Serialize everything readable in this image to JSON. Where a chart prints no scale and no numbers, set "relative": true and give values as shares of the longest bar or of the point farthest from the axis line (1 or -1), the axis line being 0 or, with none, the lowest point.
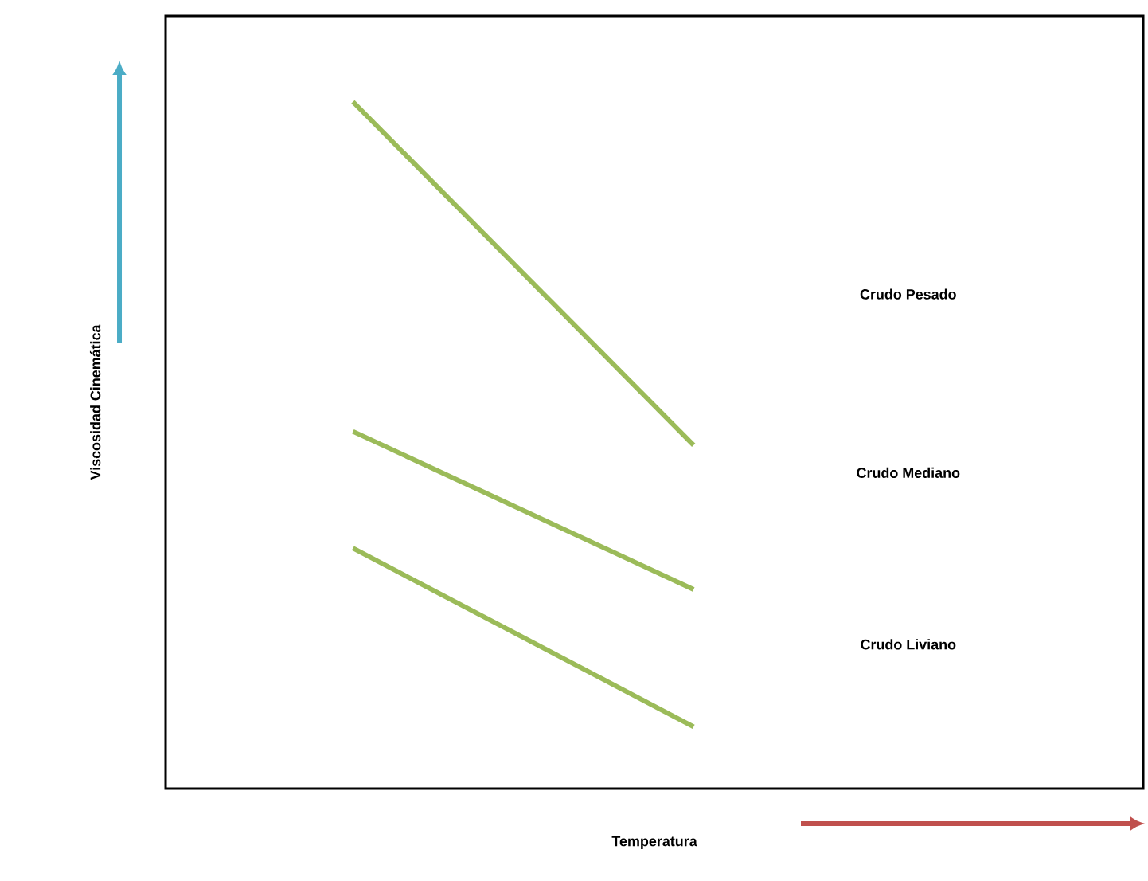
{
  "chart_data": {
    "type": "line",
    "relative": true,
    "xlabel": "Temperatura",
    "ylabel": "Viscosidad Cinemática",
    "categories": [
      null,
      null
    ],
    "series": [
      {
        "name": "Crudo Pesado",
        "color": "#9bbb59",
        "values": [
          1,
          0.5
        ]
      },
      {
        "name": "Crudo Mediano",
        "color": "#9bbb59",
        "values": [
          0.52,
          0.29
        ]
      },
      {
        "name": "Crudo Liviano",
        "color": "#9bbb59",
        "values": [
          0.35,
          0.09
        ]
      }
    ]
  }
}
